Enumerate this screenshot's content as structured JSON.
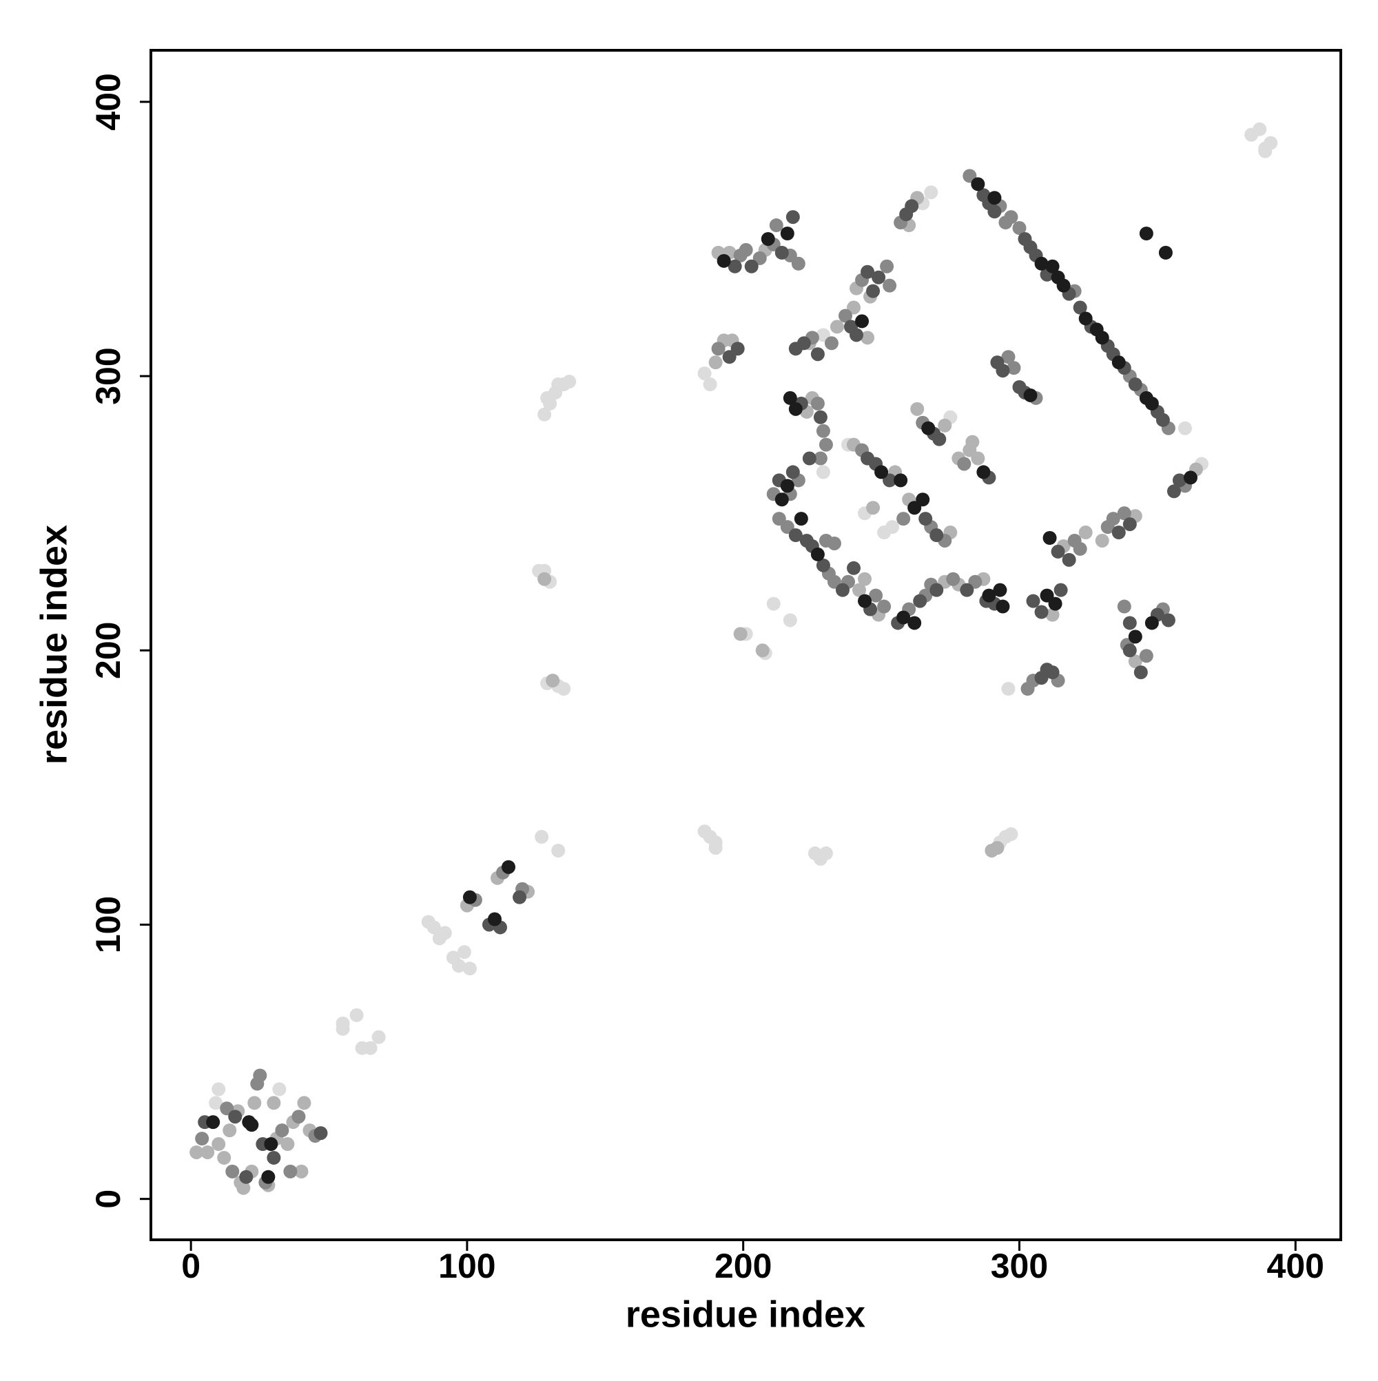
{
  "chart_data": {
    "type": "scatter",
    "x_label": "residue index",
    "y_label": "residue index",
    "xlim": [
      -14.5,
      416.4
    ],
    "ylim": [
      -14.9,
      418.8
    ],
    "xticks": [
      0,
      100,
      200,
      300,
      400
    ],
    "yticks": [
      0,
      100,
      200,
      300,
      400
    ],
    "grid": false,
    "series": [
      {
        "color": "#dcdcdc",
        "x": [
          9,
          10,
          32,
          55,
          55,
          60,
          62,
          65,
          68,
          86,
          88,
          90,
          92,
          95,
          97,
          99,
          101,
          127,
          133,
          126,
          128,
          130,
          129,
          133,
          135,
          128,
          130,
          132,
          133,
          135,
          137,
          129,
          186,
          188,
          186,
          188,
          190,
          190,
          201,
          208,
          211,
          217,
          229,
          244,
          251,
          254,
          265,
          268,
          275,
          296,
          293,
          295,
          297,
          226,
          228,
          230,
          384,
          387,
          389,
          391,
          389,
          366,
          360,
          238,
          229
        ],
        "values": [
          35,
          40,
          40,
          64,
          62,
          67,
          55,
          55,
          59,
          101,
          99,
          95,
          97,
          88,
          85,
          90,
          84,
          132,
          127,
          229,
          229,
          225,
          188,
          187,
          186,
          286,
          290,
          294,
          297,
          297,
          298,
          292,
          301,
          297,
          134,
          132,
          130,
          128,
          206,
          199,
          217,
          211,
          315,
          250,
          243,
          245,
          363,
          367,
          285,
          186,
          130,
          132,
          133,
          126,
          124,
          126,
          388,
          390,
          383,
          385,
          382,
          268,
          281,
          275,
          265
        ]
      },
      {
        "color": "#b3b3b3",
        "x": [
          2,
          6,
          10,
          12,
          18,
          19,
          22,
          23,
          30,
          31,
          35,
          37,
          40,
          41,
          43,
          14,
          17,
          28,
          100,
          111,
          122,
          128,
          131,
          191,
          195,
          208,
          190,
          193,
          196,
          224,
          223,
          225,
          242,
          244,
          249,
          273,
          278,
          287,
          234,
          240,
          245,
          241,
          246,
          263,
          260,
          240,
          255,
          247,
          260,
          275,
          263,
          273,
          278,
          282,
          283,
          285,
          312,
          316,
          324,
          330,
          342,
          342,
          364,
          199,
          207,
          292,
          290
        ],
        "values": [
          17,
          17,
          20,
          15,
          6,
          4,
          10,
          35,
          35,
          22,
          20,
          28,
          10,
          35,
          25,
          25,
          32,
          5,
          107,
          117,
          112,
          226,
          189,
          345,
          345,
          346,
          305,
          313,
          313,
          312,
          287,
          292,
          222,
          226,
          213,
          225,
          224,
          226,
          318,
          325,
          314,
          332,
          329,
          365,
          355,
          275,
          265,
          252,
          255,
          243,
          288,
          282,
          270,
          273,
          276,
          270,
          213,
          238,
          243,
          240,
          249,
          196,
          266,
          206,
          200,
          128,
          127
        ]
      },
      {
        "color": "#888888",
        "x": [
          4,
          13,
          15,
          24,
          25,
          27,
          33,
          36,
          39,
          45,
          103,
          113,
          120,
          211,
          220,
          217,
          213,
          216,
          230,
          231,
          233,
          233,
          238,
          248,
          251,
          260,
          266,
          268,
          276,
          284,
          232,
          237,
          243,
          252,
          253,
          257,
          243,
          258,
          268,
          273,
          265,
          280,
          282,
          293,
          295,
          297,
          300,
          320,
          340,
          344,
          354,
          296,
          298,
          306,
          303,
          305,
          314,
          320,
          322,
          332,
          334,
          338,
          338,
          346,
          352,
          339,
          360,
          191,
          199,
          201,
          206,
          211,
          212,
          217,
          220,
          225,
          227,
          229,
          230,
          228
        ],
        "values": [
          22,
          33,
          10,
          42,
          45,
          6,
          25,
          10,
          30,
          23,
          109,
          119,
          113,
          257,
          262,
          257,
          248,
          245,
          240,
          228,
          239,
          225,
          225,
          220,
          216,
          215,
          220,
          224,
          226,
          225,
          312,
          322,
          335,
          340,
          333,
          356,
          273,
          248,
          245,
          240,
          283,
          268,
          373,
          362,
          356,
          358,
          354,
          331,
          300,
          295,
          281,
          307,
          303,
          292,
          186,
          189,
          189,
          240,
          237,
          245,
          248,
          250,
          216,
          198,
          215,
          202,
          260,
          310,
          344,
          346,
          343,
          348,
          355,
          344,
          341,
          314,
          290,
          280,
          275,
          270
        ]
      },
      {
        "color": "#555555",
        "x": [
          5,
          16,
          20,
          26,
          30,
          47,
          108,
          112,
          119,
          219,
          223,
          225,
          229,
          213,
          218,
          221,
          228,
          224,
          236,
          240,
          246,
          256,
          264,
          270,
          281,
          288,
          291,
          239,
          245,
          249,
          259,
          245,
          248,
          253,
          266,
          270,
          269,
          271,
          289,
          287,
          289,
          291,
          302,
          304,
          306,
          310,
          318,
          322,
          326,
          332,
          334,
          338,
          342,
          350,
          352,
          292,
          294,
          300,
          305,
          308,
          315,
          314,
          318,
          336,
          340,
          340,
          344,
          340,
          350,
          354,
          356,
          358,
          195,
          198,
          197,
          203,
          214,
          218,
          219,
          222,
          227,
          302,
          308,
          310,
          312,
          241,
          247,
          261
        ],
        "values": [
          28,
          30,
          8,
          20,
          15,
          24,
          100,
          99,
          110,
          242,
          240,
          238,
          231,
          262,
          265,
          290,
          285,
          270,
          222,
          230,
          215,
          210,
          218,
          222,
          222,
          218,
          217,
          318,
          338,
          336,
          359,
          270,
          268,
          262,
          248,
          242,
          279,
          277,
          263,
          366,
          363,
          360,
          350,
          347,
          344,
          337,
          330,
          325,
          318,
          311,
          308,
          303,
          297,
          287,
          284,
          305,
          302,
          296,
          218,
          214,
          222,
          236,
          233,
          243,
          246,
          210,
          192,
          200,
          213,
          211,
          258,
          262,
          307,
          310,
          340,
          340,
          345,
          358,
          310,
          312,
          308,
          294,
          190,
          193,
          192,
          315,
          331,
          362
        ]
      },
      {
        "color": "#1c1c1c",
        "x": [
          21,
          22,
          28,
          29,
          8,
          101,
          110,
          115,
          217,
          219,
          214,
          216,
          221,
          227,
          244,
          262,
          289,
          293,
          294,
          250,
          257,
          262,
          265,
          267,
          287,
          285,
          291,
          308,
          312,
          314,
          316,
          324,
          328,
          330,
          336,
          346,
          348,
          346,
          353,
          342,
          348,
          310,
          313,
          311,
          216,
          209,
          193,
          243,
          258,
          304,
          362
        ],
        "values": [
          28,
          27,
          8,
          20,
          28,
          110,
          102,
          121,
          292,
          288,
          255,
          260,
          248,
          235,
          218,
          210,
          220,
          222,
          216,
          265,
          262,
          252,
          255,
          281,
          265,
          370,
          365,
          341,
          340,
          336,
          333,
          321,
          317,
          314,
          305,
          292,
          290,
          352,
          345,
          205,
          210,
          220,
          217,
          241,
          352,
          350,
          342,
          320,
          212,
          293,
          263
        ]
      }
    ]
  }
}
